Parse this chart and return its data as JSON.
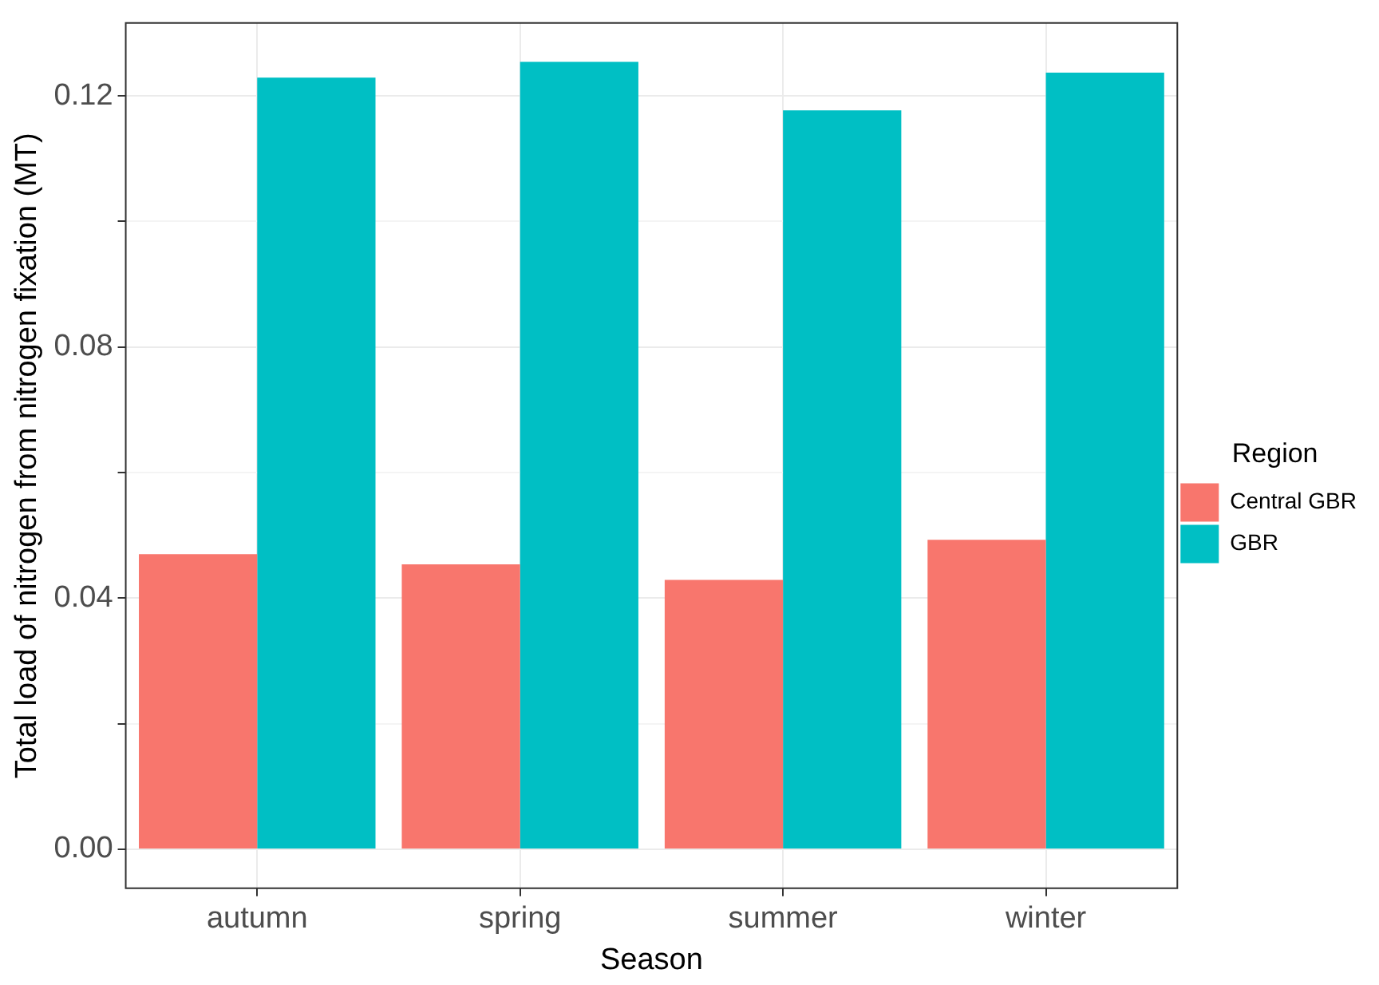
{
  "chart_data": {
    "type": "bar",
    "xlabel": "Season",
    "ylabel": "Total load of nitrogen from nitrogen fixation (MT)",
    "legend_title": "Region",
    "categories": [
      "autumn",
      "spring",
      "summer",
      "winter"
    ],
    "series": [
      {
        "name": "Central GBR",
        "color": "#f8766d",
        "values": [
          0.047,
          0.0454,
          0.0429,
          0.0493
        ]
      },
      {
        "name": "GBR",
        "color": "#00bfc4",
        "values": [
          0.1229,
          0.1254,
          0.1177,
          0.1237
        ]
      }
    ],
    "ylim": [
      -0.0062,
      0.1316
    ],
    "yticks": [
      "0.00",
      {
        "value": 0.02,
        "label": null
      },
      {
        "value": 0.04,
        "label": "0.04"
      },
      {
        "value": 0.06,
        "label": null
      },
      {
        "value": 0.08,
        "label": "0.08"
      },
      {
        "value": 0.1,
        "label": null
      },
      {
        "value": 0.12,
        "label": "0.12"
      }
    ],
    "grid": true,
    "legend": "right"
  }
}
